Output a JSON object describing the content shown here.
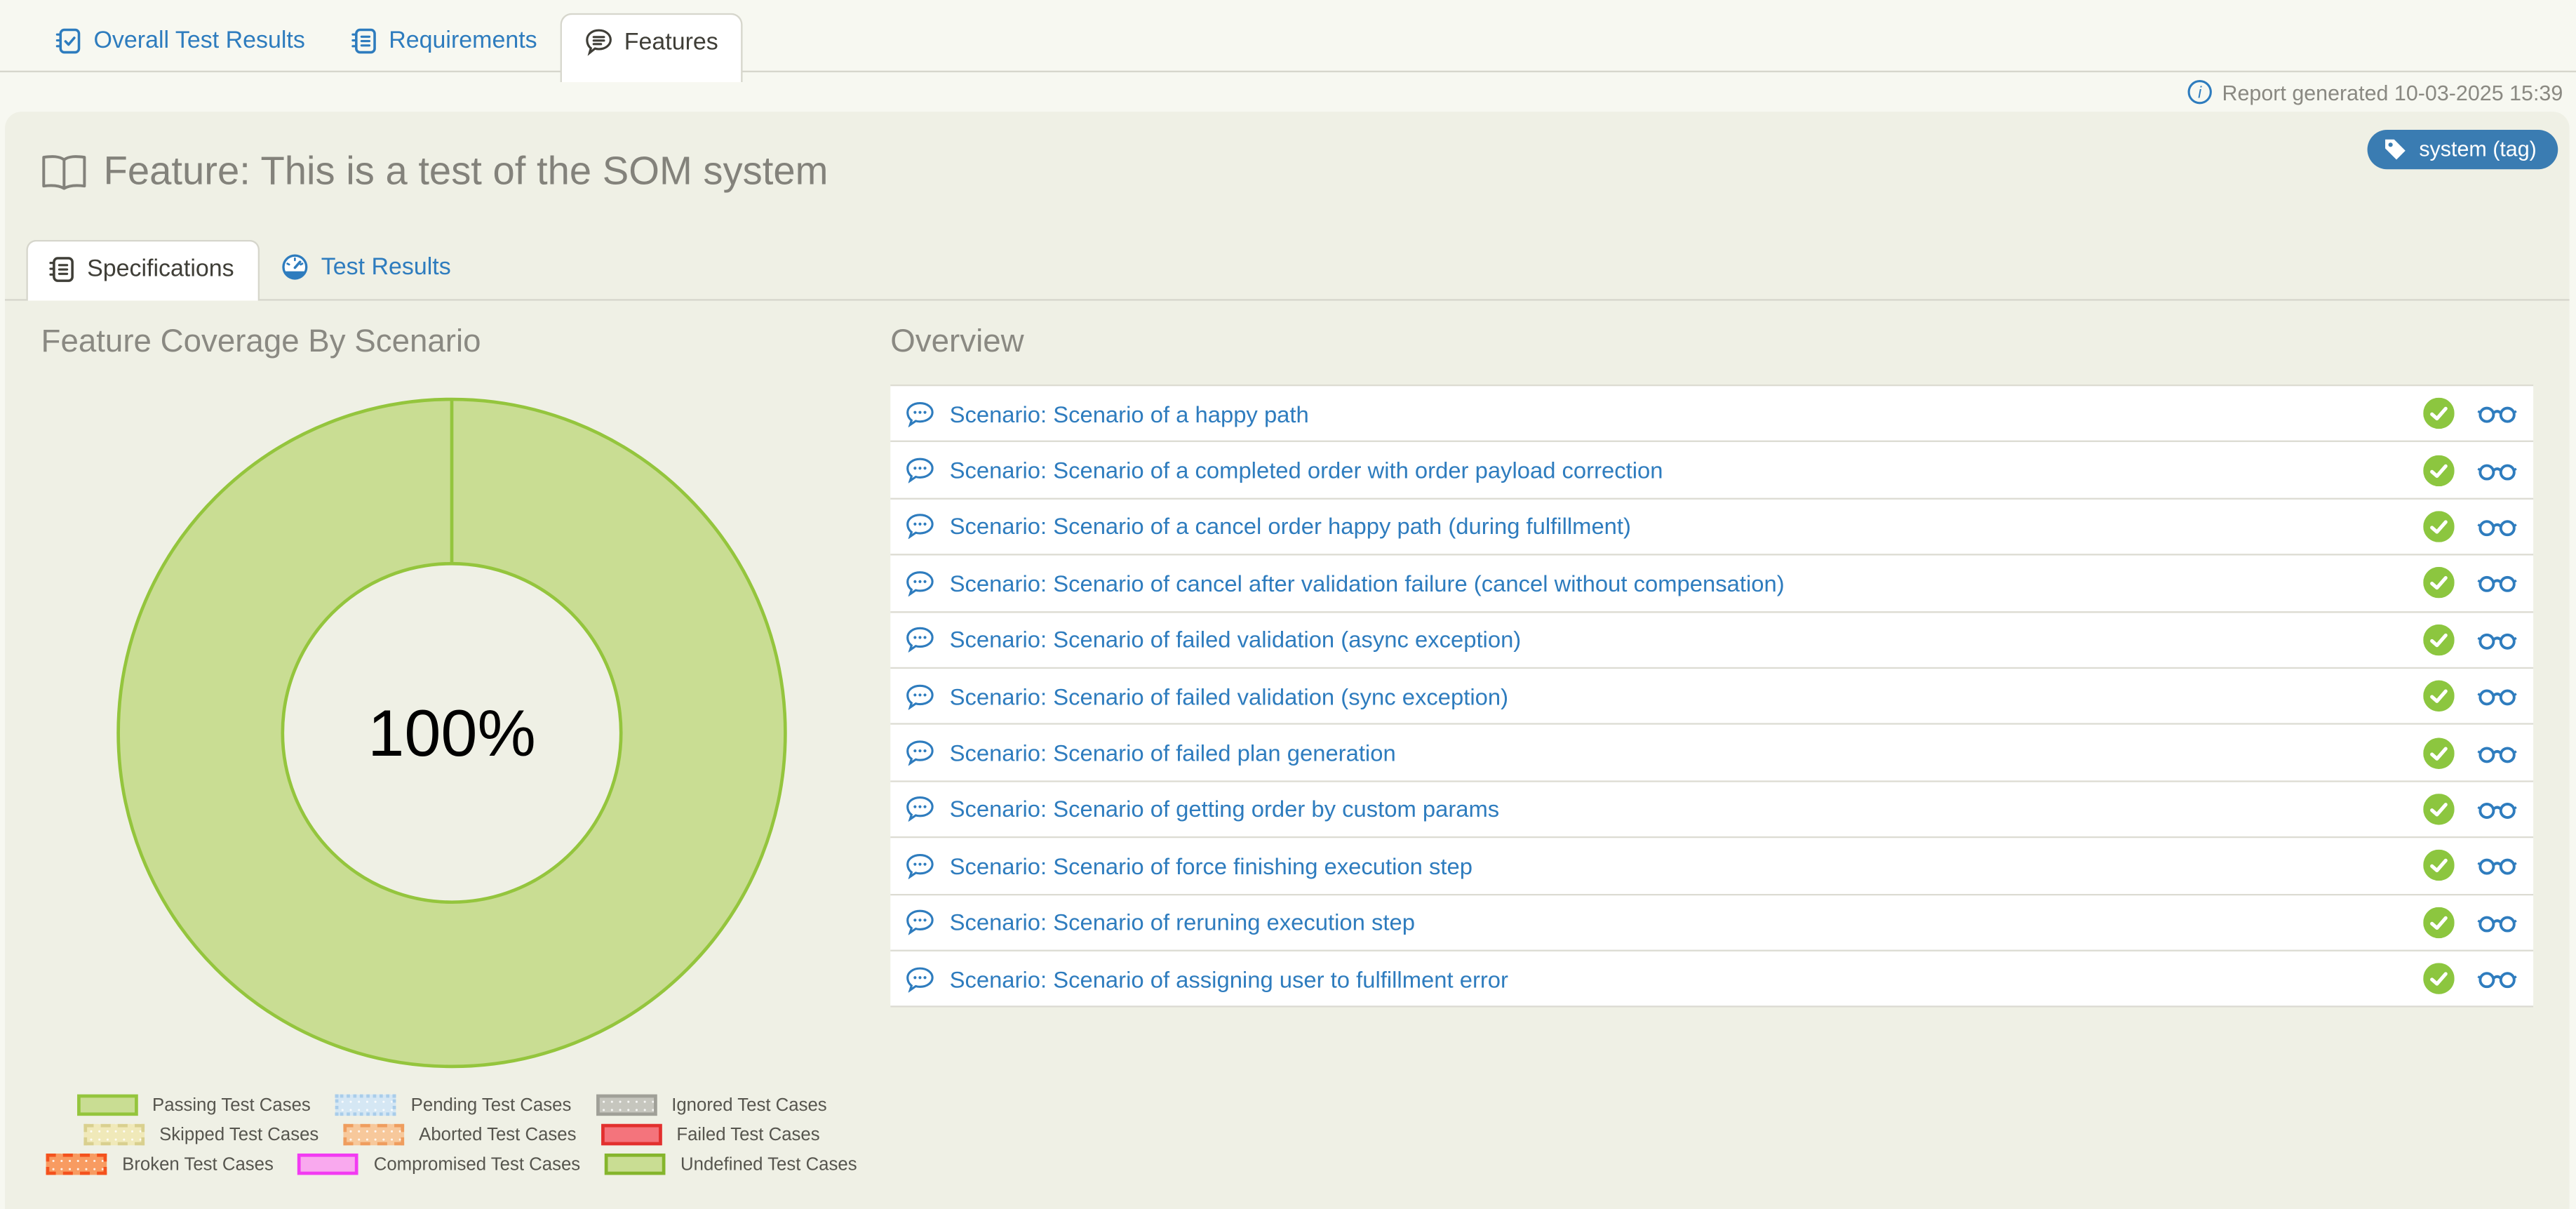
{
  "header": {
    "tabs": [
      {
        "label": "Overall Test Results",
        "active": false
      },
      {
        "label": "Requirements",
        "active": false
      },
      {
        "label": "Features",
        "active": true
      }
    ],
    "report_generated": "Report generated 10-03-2025 15:39"
  },
  "feature": {
    "title": "Feature: This is a test of the SOM system",
    "tag_label": "system (tag)",
    "tag_color": "#3a7cb2"
  },
  "sub_tabs": [
    {
      "label": "Specifications",
      "active": true
    },
    {
      "label": "Test Results",
      "active": false
    }
  ],
  "chart_data": {
    "type": "pie",
    "title": "Feature Coverage By Scenario",
    "center_label": "100%",
    "donut": {
      "fill": "#c9dd93",
      "border": "#94c53d",
      "background": "#eff0e5"
    },
    "slices": [
      {
        "label": "Passing Test Cases",
        "value": 100
      }
    ],
    "legend_position": "bottom",
    "legend_rows": [
      [
        {
          "label": "Passing Test Cases",
          "fill": "#c9dd93",
          "border": "#94c53d",
          "style": "solid",
          "patterned": false
        },
        {
          "label": "Pending Test Cases",
          "fill": "#d5e7f4",
          "border": "#a9cdea",
          "style": "dotted",
          "patterned": true
        },
        {
          "label": "Ignored Test Cases",
          "fill": "#c6c6be",
          "border": "#a0a098",
          "style": "solid",
          "patterned": true
        }
      ],
      [
        {
          "label": "Skipped Test Cases",
          "fill": "#f0e9b9",
          "border": "#d9d08f",
          "style": "dashed",
          "patterned": true
        },
        {
          "label": "Aborted Test Cases",
          "fill": "#f7c89b",
          "border": "#ef9d5e",
          "style": "dashed",
          "patterned": true
        },
        {
          "label": "Failed Test Cases",
          "fill": "#f4747c",
          "border": "#e2302e",
          "style": "solid",
          "patterned": false
        }
      ],
      [
        {
          "label": "Broken Test Cases",
          "fill": "#f89b61",
          "border": "#f4521d",
          "style": "dashed",
          "patterned": true
        },
        {
          "label": "Compromised Test Cases",
          "fill": "#f9a9ee",
          "border": "#f23bf2",
          "style": "solid",
          "patterned": false
        },
        {
          "label": "Undefined Test Cases",
          "fill": "#c9dd93",
          "border": "#85b52c",
          "style": "solid",
          "patterned": false
        }
      ]
    ]
  },
  "overview": {
    "heading": "Overview",
    "rows": [
      {
        "label": "Scenario: Scenario of a happy path"
      },
      {
        "label": "Scenario: Scenario of a completed order with order payload correction"
      },
      {
        "label": "Scenario: Scenario of a cancel order happy path (during fulfillment)"
      },
      {
        "label": "Scenario: Scenario of cancel after validation failure (cancel without compensation)"
      },
      {
        "label": "Scenario: Scenario of failed validation (async exception)"
      },
      {
        "label": "Scenario: Scenario of failed validation (sync exception)"
      },
      {
        "label": "Scenario: Scenario of failed plan generation"
      },
      {
        "label": "Scenario: Scenario of getting order by custom params"
      },
      {
        "label": "Scenario: Scenario of force finishing execution step"
      },
      {
        "label": "Scenario: Scenario of reruning execution step"
      },
      {
        "label": "Scenario: Scenario of assigning user to fulfillment error"
      }
    ],
    "row_status_color": "#8cc63f"
  }
}
